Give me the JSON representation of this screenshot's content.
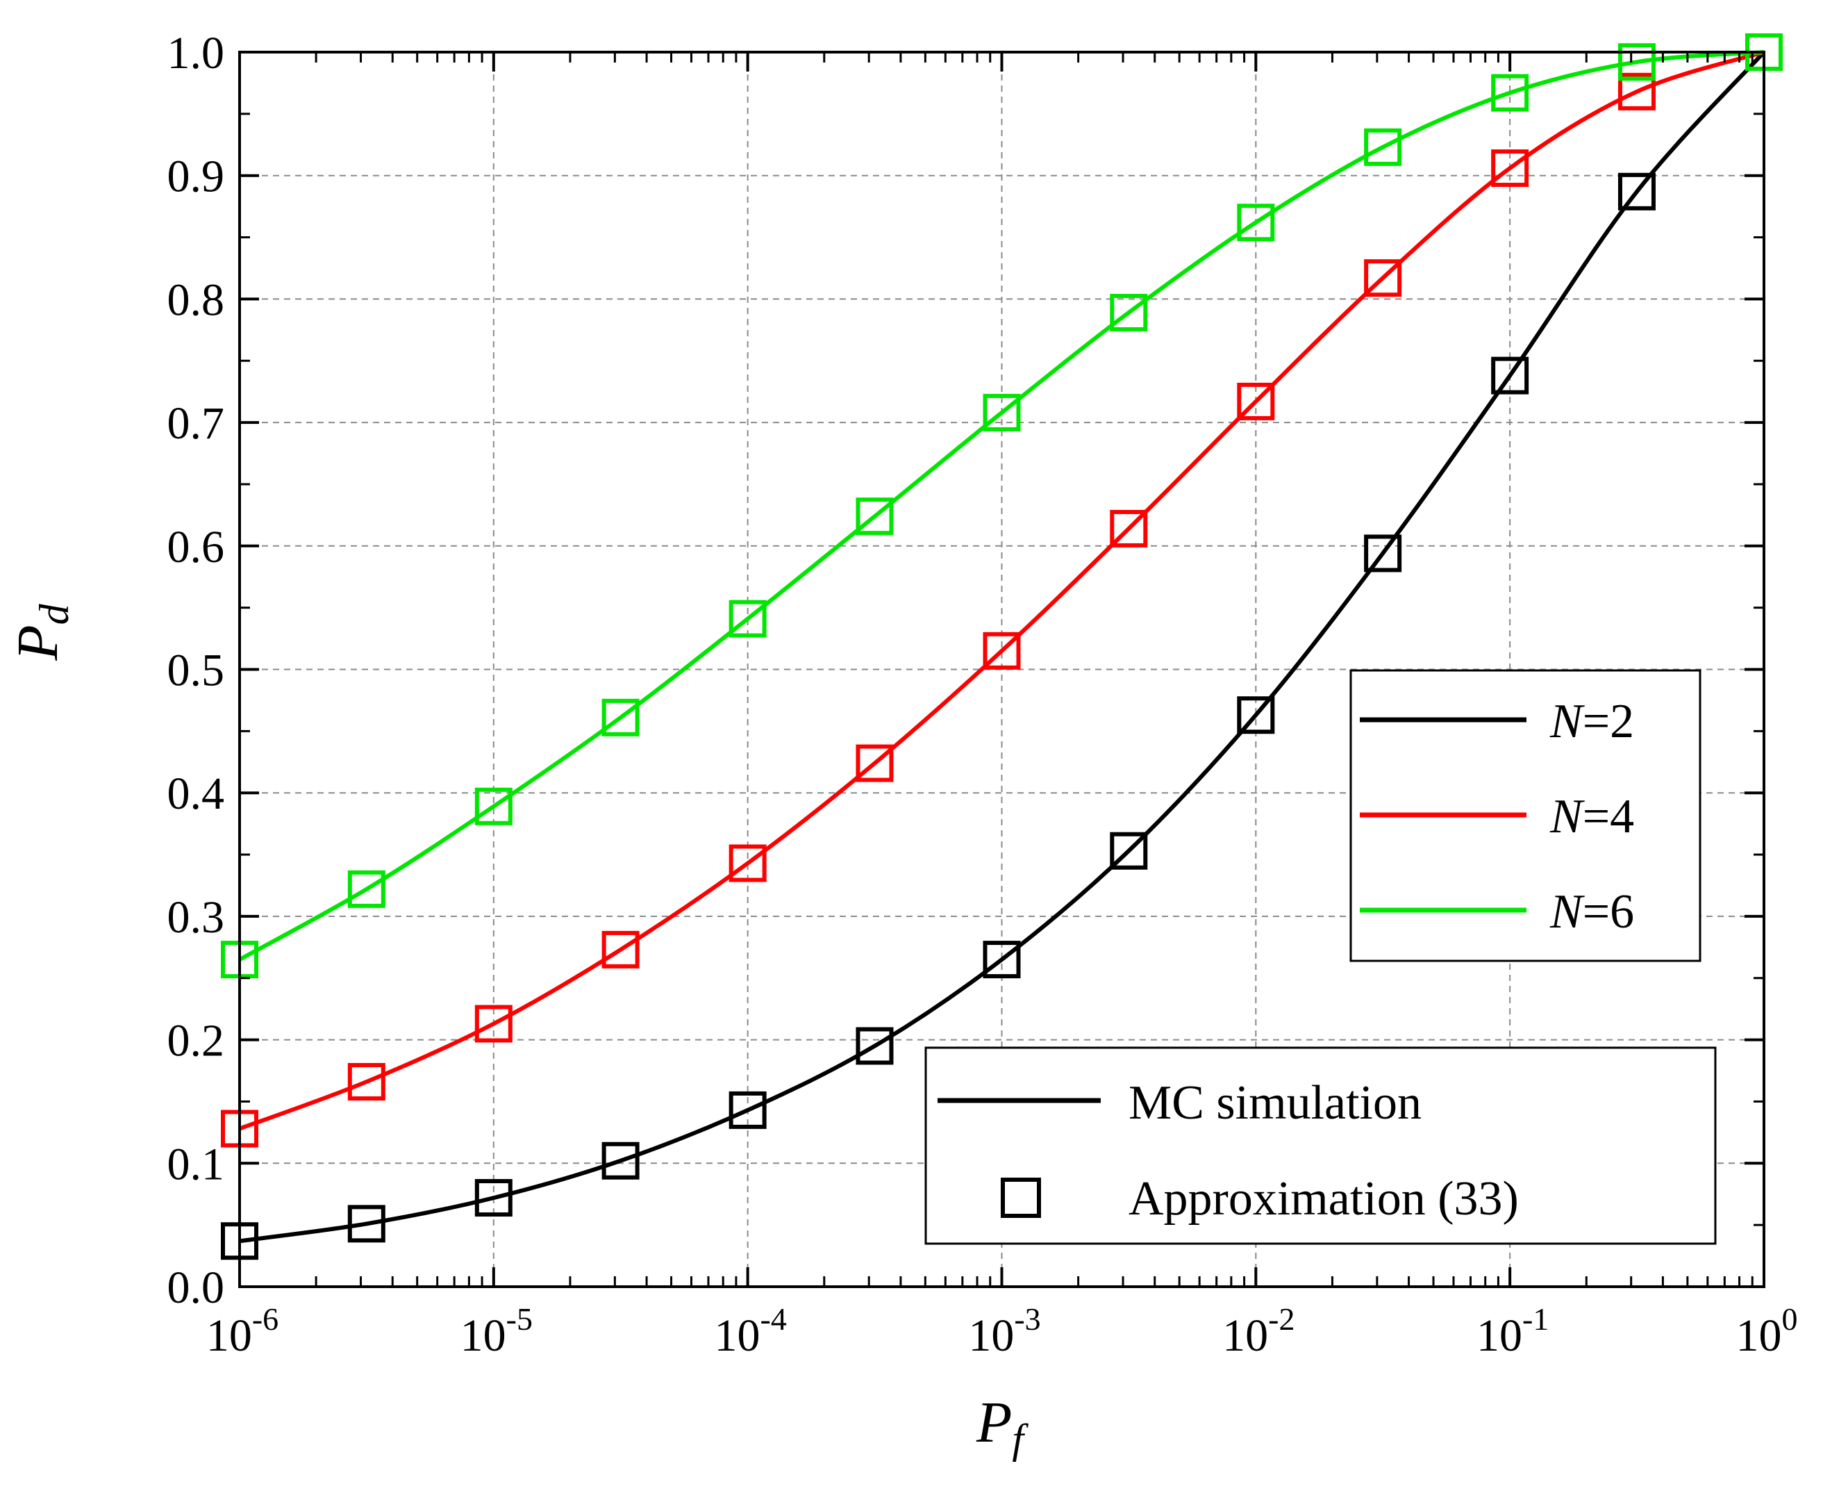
{
  "chart_data": {
    "type": "line",
    "title": "",
    "xlabel": {
      "base": "P",
      "sub": "f"
    },
    "ylabel": {
      "base": "P",
      "sub": "d"
    },
    "xscale": "log",
    "xlim": [
      1e-06,
      1
    ],
    "ylim": [
      0.0,
      1.0
    ],
    "grid": true,
    "x_tick_labels": [
      {
        "base": "10",
        "exp": "-6"
      },
      {
        "base": "10",
        "exp": "-5"
      },
      {
        "base": "10",
        "exp": "-4"
      },
      {
        "base": "10",
        "exp": "-3"
      },
      {
        "base": "10",
        "exp": "-2"
      },
      {
        "base": "10",
        "exp": "-1"
      },
      {
        "base": "10",
        "exp": "0"
      }
    ],
    "y_ticks": [
      "0.0",
      "0.1",
      "0.2",
      "0.3",
      "0.4",
      "0.5",
      "0.6",
      "0.7",
      "0.8",
      "0.9",
      "1.0"
    ],
    "marker_x": [
      1e-06,
      3.16e-06,
      1e-05,
      3.16e-05,
      0.0001,
      0.000316,
      0.001,
      0.00316,
      0.01,
      0.0316,
      0.1,
      0.316,
      1
    ],
    "series": [
      {
        "name": "N=2",
        "color": "#000000",
        "values": [
          0.037,
          0.051,
          0.072,
          0.102,
          0.143,
          0.195,
          0.265,
          0.353,
          0.463,
          0.594,
          0.738,
          0.887,
          1.0
        ]
      },
      {
        "name": "N=4",
        "color": "#ff0000",
        "values": [
          0.128,
          0.166,
          0.213,
          0.273,
          0.343,
          0.424,
          0.515,
          0.614,
          0.717,
          0.817,
          0.906,
          0.968,
          1.0
        ]
      },
      {
        "name": "N=6",
        "color": "#00e600",
        "values": [
          0.265,
          0.322,
          0.389,
          0.461,
          0.541,
          0.624,
          0.708,
          0.789,
          0.862,
          0.923,
          0.967,
          0.992,
          1.0
        ]
      }
    ],
    "legend_series": [
      {
        "italic": "N",
        "rest": "=2",
        "color": "#000000"
      },
      {
        "italic": "N",
        "rest": "=4",
        "color": "#ff0000"
      },
      {
        "italic": "N",
        "rest": "=6",
        "color": "#00e600"
      }
    ],
    "legend_series_placement": "middle-right",
    "legend_style": [
      {
        "label": "MC simulation",
        "kind": "line"
      },
      {
        "label": "Approximation (33)",
        "kind": "marker"
      }
    ],
    "legend_style_placement": "bottom-right"
  }
}
